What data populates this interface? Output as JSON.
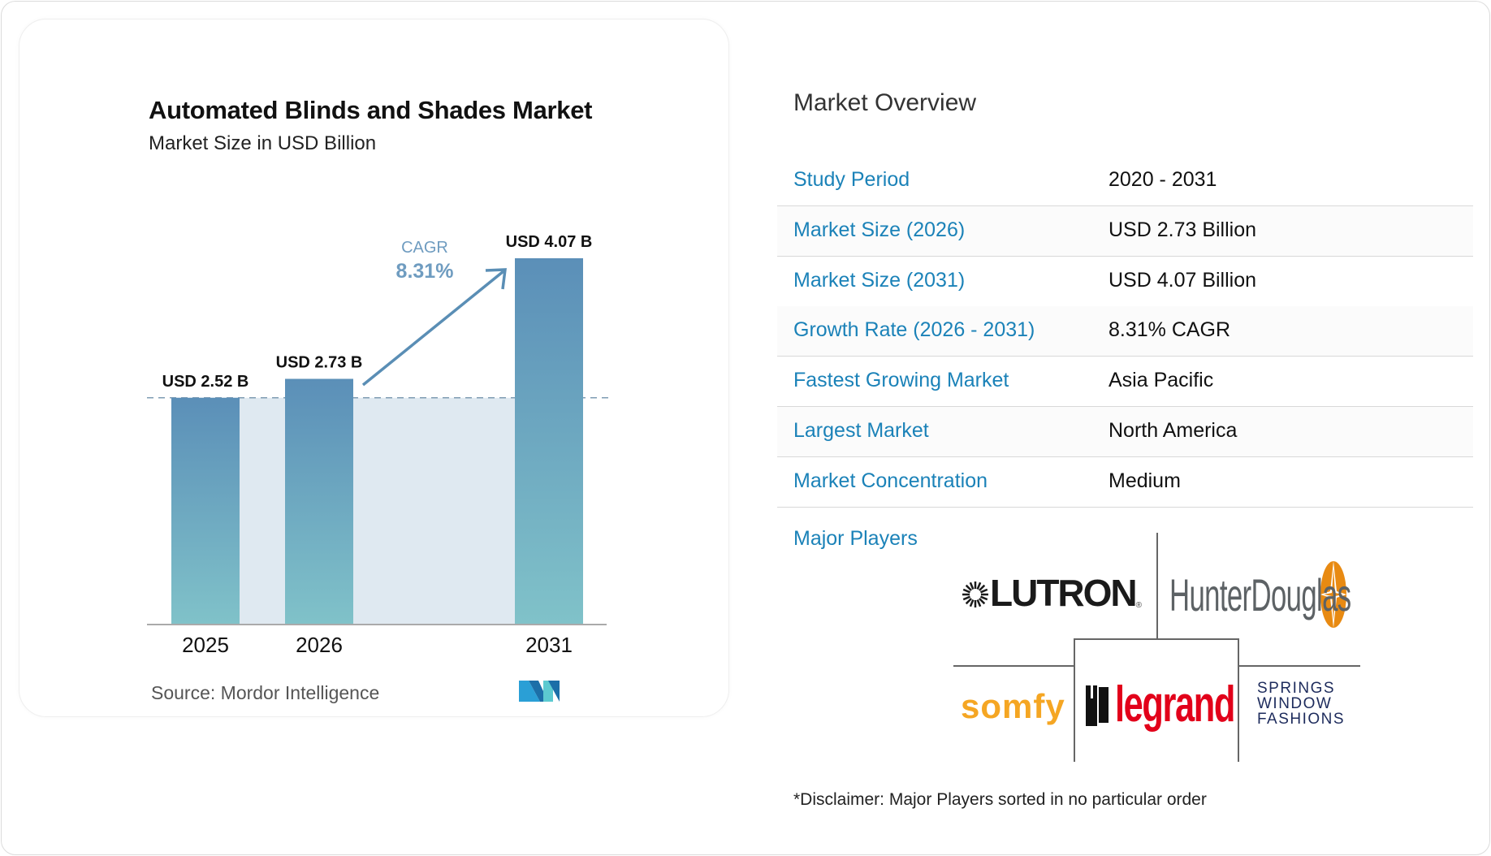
{
  "chart_data": {
    "type": "bar",
    "title": "Automated Blinds and Shades Market",
    "subtitle": "Market Size in USD Billion",
    "categories": [
      "2025",
      "2026",
      "2031"
    ],
    "values": [
      2.52,
      2.73,
      4.07
    ],
    "data_labels": [
      "USD 2.52 B",
      "USD 2.73 B",
      "USD 4.07 B"
    ],
    "ylim": [
      0,
      4.07
    ],
    "annotation": {
      "label": "CAGR",
      "value": "8.31%"
    },
    "source": "Source:  Mordor Intelligence",
    "colors": {
      "bar_top": "#5b8fb8",
      "bar_bottom": "#80c2c9",
      "fill": "#dfe9f1",
      "accent": "#5a8eb5"
    }
  },
  "overview": {
    "title": "Market Overview",
    "rows": [
      {
        "label": "Study Period",
        "value": "2020 - 2031"
      },
      {
        "label": "Market Size (2026)",
        "value": "USD 2.73 Billion"
      },
      {
        "label": "Market Size (2031)",
        "value": "USD 4.07 Billion"
      },
      {
        "label": "Growth Rate (2026 - 2031)",
        "value": "8.31% CAGR"
      },
      {
        "label": "Fastest Growing Market",
        "value": "Asia Pacific"
      },
      {
        "label": "Largest Market",
        "value": "North America"
      },
      {
        "label": "Market Concentration",
        "value": "Medium"
      }
    ],
    "major_players_label": "Major Players",
    "players": [
      "LUTRON",
      "HunterDouglas",
      "somfy",
      "legrand",
      "SPRINGS WINDOW FASHIONS"
    ],
    "disclaimer": "*Disclaimer: Major Players sorted in no particular order"
  }
}
